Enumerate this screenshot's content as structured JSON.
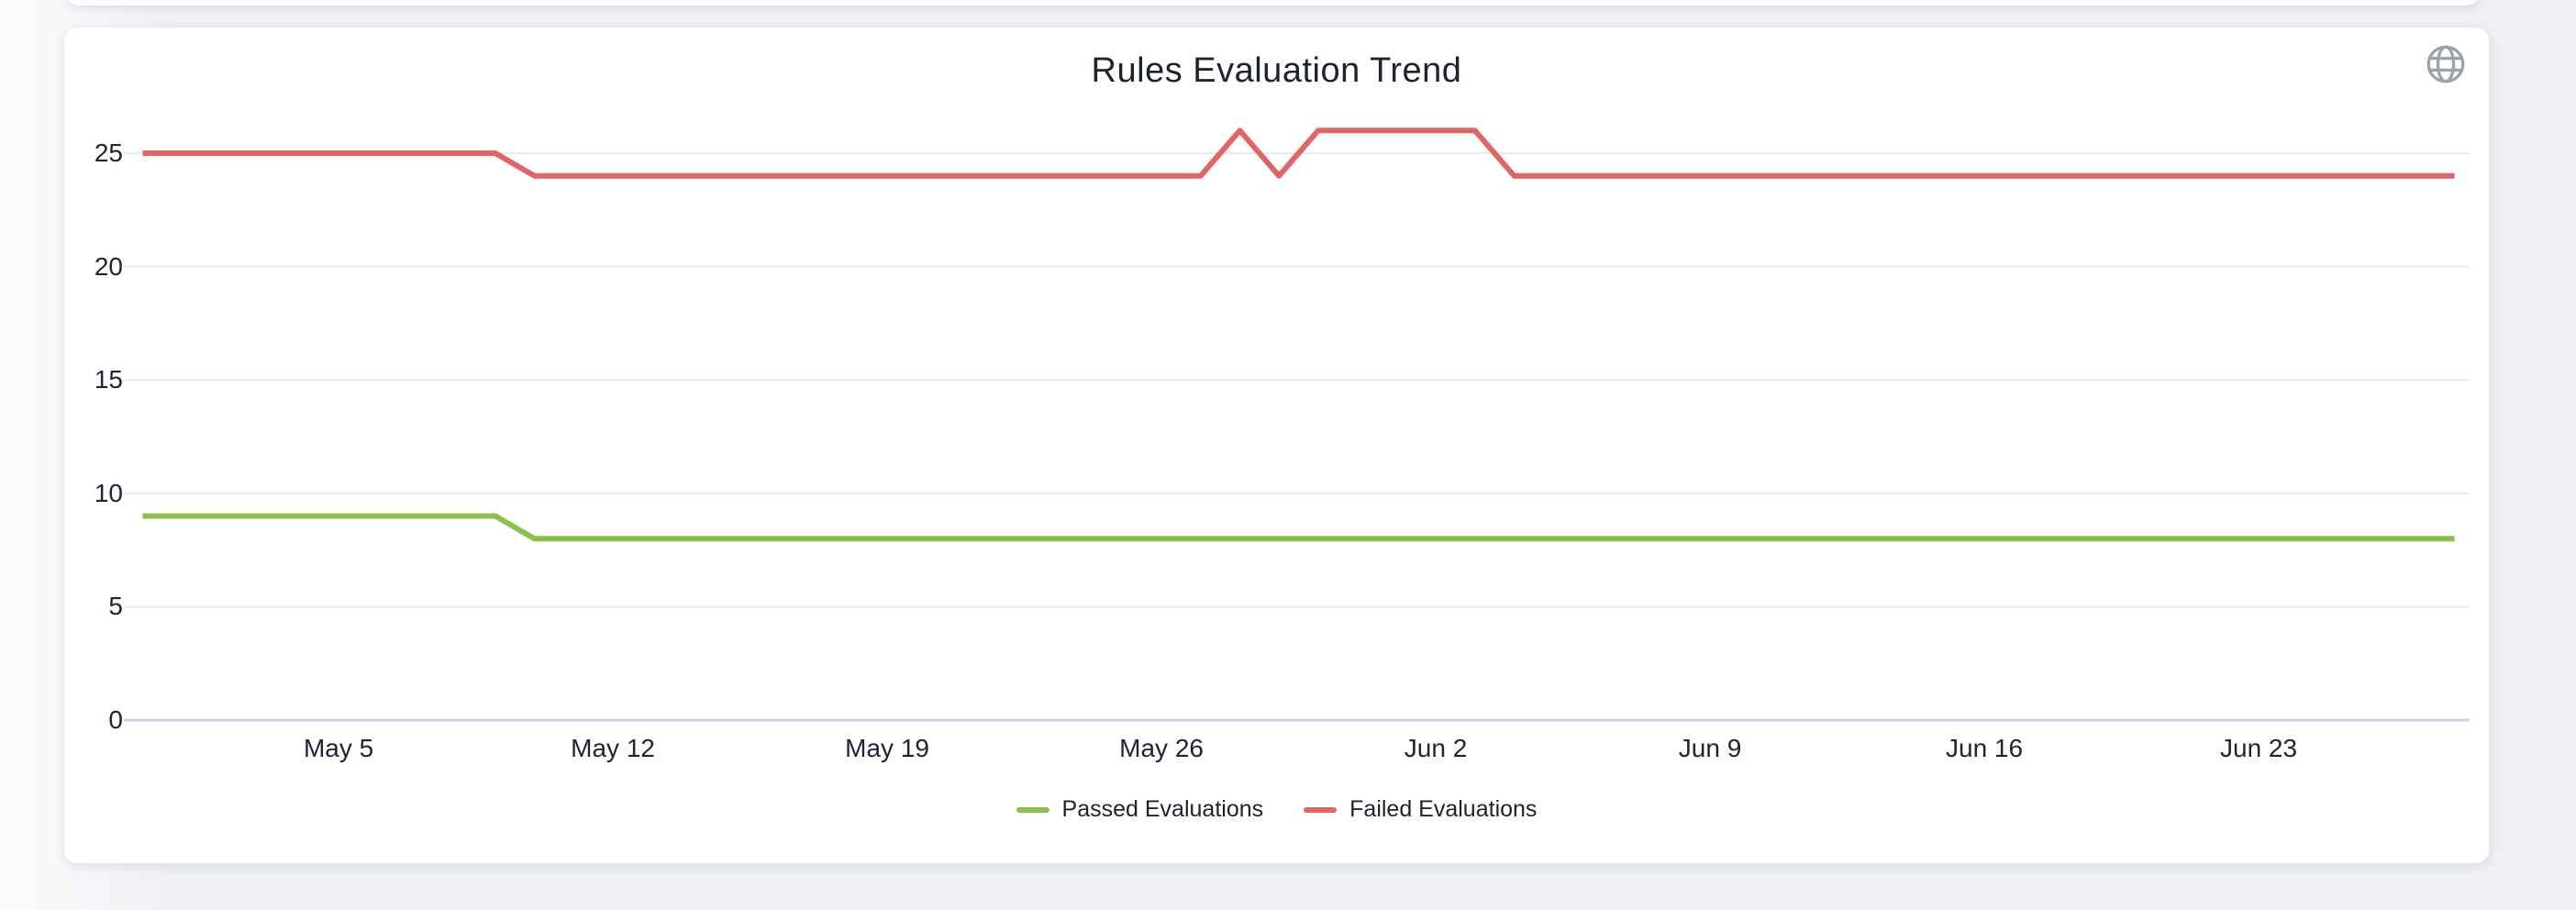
{
  "window": {
    "globe_icon": "globe-icon"
  },
  "chart_data": {
    "type": "line",
    "title": "Rules Evaluation Trend",
    "xlabel": "",
    "ylabel": "",
    "grid": "horizontal",
    "legend_position": "bottom",
    "y_ticks": [
      0,
      5,
      10,
      15,
      20,
      25
    ],
    "ylim": [
      0,
      27
    ],
    "x_tick_labels": [
      "May 5",
      "May 12",
      "May 19",
      "May 26",
      "Jun 2",
      "Jun 9",
      "Jun 16",
      "Jun 23"
    ],
    "x_tick_point_indices": [
      5,
      12,
      19,
      26,
      33,
      40,
      47,
      54
    ],
    "points_per_series": 60,
    "series": [
      {
        "name": "Passed Evaluations",
        "color": "#8dc04b",
        "values": [
          9,
          9,
          9,
          9,
          9,
          9,
          9,
          9,
          9,
          9,
          8,
          8,
          8,
          8,
          8,
          8,
          8,
          8,
          8,
          8,
          8,
          8,
          8,
          8,
          8,
          8,
          8,
          8,
          8,
          8,
          8,
          8,
          8,
          8,
          8,
          8,
          8,
          8,
          8,
          8,
          8,
          8,
          8,
          8,
          8,
          8,
          8,
          8,
          8,
          8,
          8,
          8,
          8,
          8,
          8,
          8,
          8,
          8,
          8,
          8
        ]
      },
      {
        "name": "Failed Evaluations",
        "color": "#e16565",
        "values": [
          25,
          25,
          25,
          25,
          25,
          25,
          25,
          25,
          25,
          25,
          24,
          24,
          24,
          24,
          24,
          24,
          24,
          24,
          24,
          24,
          24,
          24,
          24,
          24,
          24,
          24,
          24,
          24,
          26,
          24,
          26,
          26,
          26,
          26,
          26,
          24,
          24,
          24,
          24,
          24,
          24,
          24,
          24,
          24,
          24,
          24,
          24,
          24,
          24,
          24,
          24,
          24,
          24,
          24,
          24,
          24,
          24,
          24,
          24,
          24
        ]
      }
    ],
    "colors": {
      "grid_line": "#e9eaec",
      "axis_line": "#ccd6e3",
      "text": "#1c2333",
      "globe_icon": "#9aa2ac"
    }
  }
}
